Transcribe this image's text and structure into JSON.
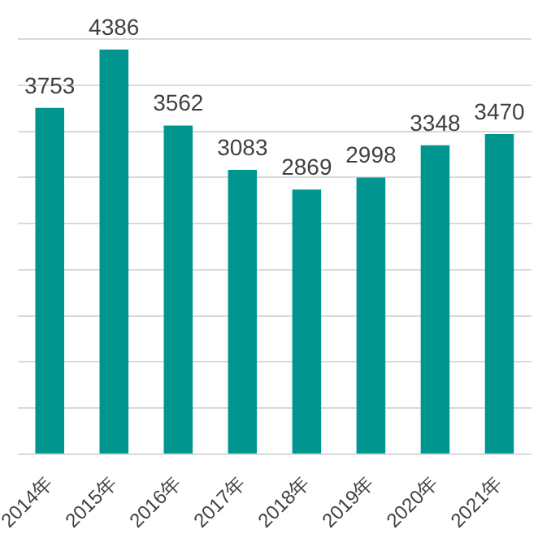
{
  "chart_data": {
    "type": "bar",
    "categories": [
      "2014年",
      "2015年",
      "2016年",
      "2017年",
      "2018年",
      "2019年",
      "2020年",
      "2021年"
    ],
    "values": [
      3753,
      4386,
      3562,
      3083,
      2869,
      2998,
      3348,
      3470
    ],
    "color": "#00968f",
    "grid": "y",
    "tick_labels": "x",
    "data_labels": true
  }
}
